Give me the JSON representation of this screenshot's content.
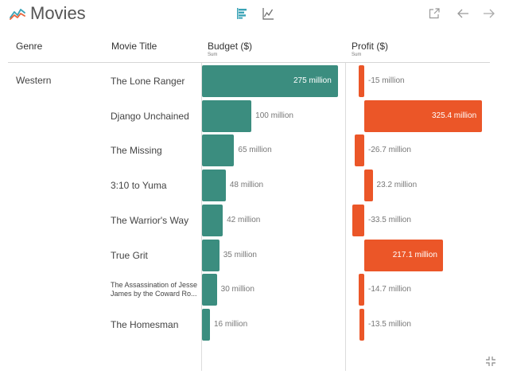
{
  "app": {
    "title": "Movies"
  },
  "toolbar": {
    "icons": {
      "logo": "line-chart-logo-icon",
      "bar_view": "horizontal-bar-chart-icon",
      "line_view": "line-chart-icon",
      "share": "share-export-icon",
      "back": "arrow-left-icon",
      "forward": "arrow-right-icon",
      "collapse": "collapse-arrows-icon"
    }
  },
  "columns": {
    "genre": "Genre",
    "title": "Movie Title",
    "budget": "Budget ($)",
    "budget_agg": "Sum",
    "profit": "Profit ($)",
    "profit_agg": "Sum"
  },
  "colors": {
    "budget_bar": "#3b8d7f",
    "profit_bar": "#eb5628",
    "accent_teal": "#3aa3b6",
    "accent_red": "#e8633a"
  },
  "chart_data": {
    "type": "bar",
    "categories": [
      "The Lone Ranger",
      "Django Unchained",
      "The Missing",
      "3:10 to Yuma",
      "The Warrior's Way",
      "True Grit",
      "The Assassination of Jesse James by the Coward Ro...",
      "The Homesman"
    ],
    "group": "Western",
    "series": [
      {
        "name": "Budget ($)",
        "values": [
          275,
          100,
          65,
          48,
          42,
          35,
          30,
          16
        ],
        "labels": [
          "275 million",
          "100 million",
          "65 million",
          "48 million",
          "42 million",
          "35 million",
          "30 million",
          "16 million"
        ]
      },
      {
        "name": "Profit ($)",
        "values": [
          -15,
          325.4,
          -26.7,
          23.2,
          -33.5,
          217.1,
          -14.7,
          -13.5
        ],
        "labels": [
          "-15 million",
          "325.4 million",
          "-26.7 million",
          "23.2 million",
          "-33.5 million",
          "217.1 million",
          "-14.7 million",
          "-13.5 million"
        ]
      }
    ]
  }
}
